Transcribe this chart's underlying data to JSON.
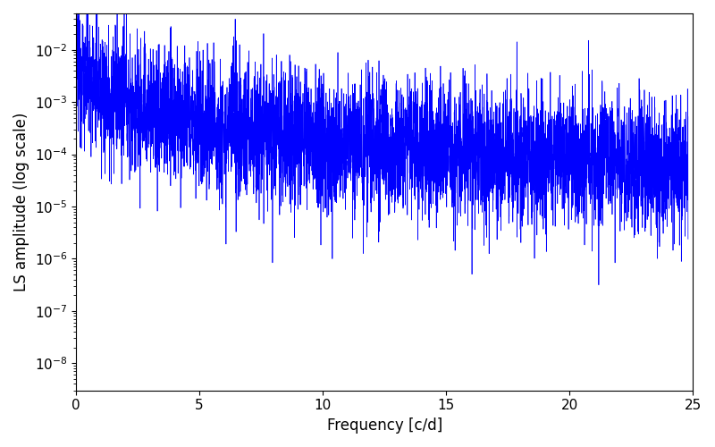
{
  "title": "",
  "xlabel": "Frequency [c/d]",
  "ylabel": "LS amplitude (log scale)",
  "xlim": [
    0,
    25
  ],
  "ylim": [
    3e-09,
    0.05
  ],
  "line_color": "#0000ff",
  "line_width": 0.5,
  "figsize": [
    8.0,
    5.0
  ],
  "dpi": 100,
  "seed": 12345,
  "n_points": 5000,
  "freq_max": 24.8,
  "background_color": "#ffffff",
  "alpha_envelope": 1.2,
  "noise_std": 1.5,
  "base_amplitude": 0.003
}
